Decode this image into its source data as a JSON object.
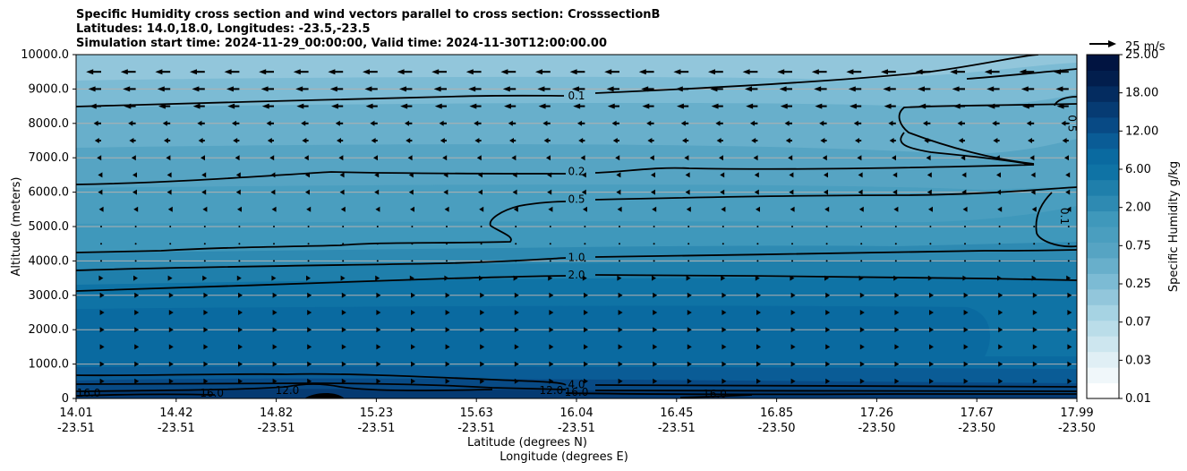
{
  "chart_data": {
    "type": "heatmap",
    "title": [
      "Specific Humidity cross section and wind vectors parallel to cross section: CrosssectionB",
      "Latitudes: 14.0,18.0, Longitudes: -23.5,-23.5",
      "Simulation start time: 2024-11-29_00:00:00, Valid time: 2024-11-30T12:00:00.00"
    ],
    "xlabel": "Latitude (degrees N)",
    "xlabel2": "Longitude (degrees E)",
    "ylabel": "Altitude (meters)",
    "ylim": [
      0,
      10000
    ],
    "y_ticks": [
      "0",
      "1000.0",
      "2000.0",
      "3000.0",
      "4000.0",
      "5000.0",
      "6000.0",
      "7000.0",
      "8000.0",
      "9000.0",
      "10000.0"
    ],
    "x_ticks_lat": [
      "14.01",
      "14.42",
      "14.82",
      "15.23",
      "15.63",
      "16.04",
      "16.45",
      "16.85",
      "17.26",
      "17.67",
      "17.99"
    ],
    "x_ticks_lon": [
      "-23.51",
      "-23.51",
      "-23.51",
      "-23.51",
      "-23.51",
      "-23.51",
      "-23.51",
      "-23.50",
      "-23.50",
      "-23.50",
      "-23.50"
    ],
    "grid": "horizontal",
    "colorbar": {
      "label": "Specific Humidity g/kg",
      "tick_labels": [
        "0.01",
        "0.03",
        "0.07",
        "0.25",
        "0.75",
        "2.00",
        "6.00",
        "12.00",
        "18.00",
        "25.00"
      ]
    },
    "contour_labels": [
      {
        "text": "0.1",
        "x": 16.0,
        "y": 8800
      },
      {
        "text": "0.2",
        "x": 16.0,
        "y": 6600
      },
      {
        "text": "0.5",
        "x": 16.0,
        "y": 5800
      },
      {
        "text": "1.0",
        "x": 16.0,
        "y": 4100
      },
      {
        "text": "2.0",
        "x": 16.0,
        "y": 3600
      },
      {
        "text": "4.0",
        "x": 16.0,
        "y": 400
      },
      {
        "text": "16.0",
        "x": 14.06,
        "y": 150
      },
      {
        "text": "16.0",
        "x": 14.55,
        "y": 150
      },
      {
        "text": "12.0",
        "x": 14.85,
        "y": 230
      },
      {
        "text": "12.0",
        "x": 15.9,
        "y": 230
      },
      {
        "text": "16.0",
        "x": 16.0,
        "y": 180
      },
      {
        "text": "16.0",
        "x": 16.55,
        "y": 130
      },
      {
        "text": "0.5",
        "x": 17.97,
        "y": 8000
      },
      {
        "text": "0.1",
        "x": 17.94,
        "y": 5300
      }
    ],
    "wind_key": "25 m/s",
    "wind_u_ms": [
      {
        "altitude": 9500,
        "u": -14
      },
      {
        "altitude": 9000,
        "u": -12
      },
      {
        "altitude": 8500,
        "u": -11
      },
      {
        "altitude": 8000,
        "u": -7
      },
      {
        "altitude": 7500,
        "u": -6
      },
      {
        "altitude": 7000,
        "u": -4
      },
      {
        "altitude": 6500,
        "u": -3
      },
      {
        "altitude": 6000,
        "u": -3
      },
      {
        "altitude": 5500,
        "u": -2
      },
      {
        "altitude": 5000,
        "u": -0.5
      },
      {
        "altitude": 4500,
        "u": 0.5
      },
      {
        "altitude": 4000,
        "u": 1
      },
      {
        "altitude": 3500,
        "u": 2
      },
      {
        "altitude": 3000,
        "u": 3
      },
      {
        "altitude": 2500,
        "u": 3
      },
      {
        "altitude": 2000,
        "u": 3
      },
      {
        "altitude": 1500,
        "u": 3
      },
      {
        "altitude": 1000,
        "u": 3
      },
      {
        "altitude": 500,
        "u": 3
      }
    ]
  }
}
